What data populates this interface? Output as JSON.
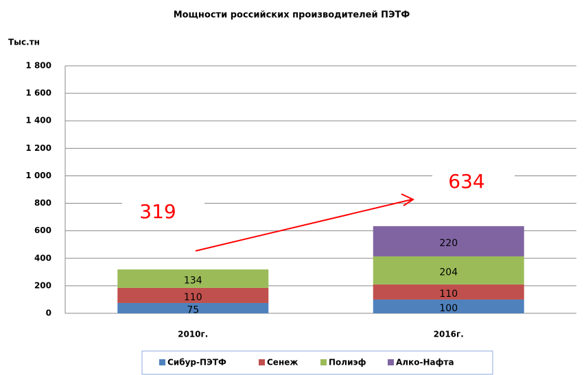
{
  "chart_data": {
    "type": "stacked_bar",
    "title": "Мощности российских производителей ПЭТФ",
    "y_label": "Тыс.тн",
    "categories": [
      "2010г.",
      "2016г."
    ],
    "series": [
      {
        "name": "Сибур-ПЭТФ",
        "color": "#4f81bd",
        "values": [
          75,
          100
        ]
      },
      {
        "name": "Сенеж",
        "color": "#c0504d",
        "values": [
          110,
          110
        ]
      },
      {
        "name": "Полиэф",
        "color": "#9bbb59",
        "values": [
          134,
          204
        ]
      },
      {
        "name": "Алко-Нафта",
        "color": "#8064a2",
        "values": [
          null,
          220
        ]
      }
    ],
    "total_labels": [
      "319",
      "634"
    ],
    "ylim": [
      0,
      1800
    ],
    "yticks": [
      0,
      200,
      400,
      600,
      800,
      {
        "value": 1000,
        "label": "1 000"
      },
      {
        "value": 1200,
        "label": "1 200"
      },
      {
        "value": 1400,
        "label": "1 400"
      },
      {
        "value": 1600,
        "label": "1 600"
      },
      {
        "value": 1800,
        "label": "1 800"
      }
    ],
    "grid": true,
    "legend": "bottom",
    "annotation_color": "#ff0000"
  }
}
